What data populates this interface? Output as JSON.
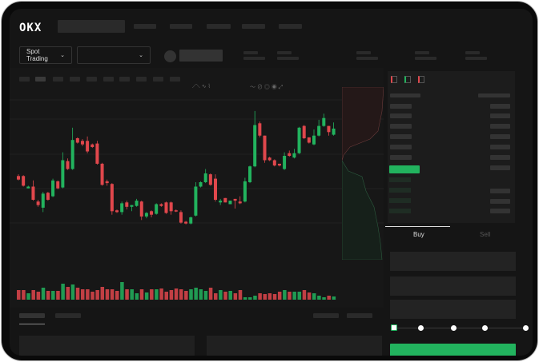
{
  "header": {
    "logo": "OKX"
  },
  "toolbar": {
    "market_selector": "Spot Trading",
    "chevron": "⌄"
  },
  "colors": {
    "up": "#22b35e",
    "down": "#e0474c",
    "background": "#151515",
    "frame": "#0a0a0a"
  },
  "trade": {
    "tabs": [
      {
        "label": "Buy",
        "active": true
      },
      {
        "label": "Sell",
        "active": false
      }
    ],
    "leverage_slider_steps": 5,
    "leverage_slider_position": 0
  },
  "orderbook": {
    "view_icons": [
      "orderbook-both-icon",
      "orderbook-bids-icon",
      "orderbook-asks-icon"
    ]
  },
  "chart_data": {
    "type": "candlestick",
    "candles": [
      [
        167,
        169,
        162,
        163
      ],
      [
        167,
        168,
        155,
        156
      ],
      [
        153,
        156,
        153,
        155
      ],
      [
        155,
        162,
        139,
        140
      ],
      [
        138,
        140,
        132,
        134
      ],
      [
        131,
        149,
        126,
        147
      ],
      [
        148,
        149,
        139,
        140
      ],
      [
        144,
        164,
        143,
        162
      ],
      [
        161,
        162,
        152,
        153
      ],
      [
        154,
        194,
        153,
        185
      ],
      [
        184,
        187,
        174,
        175
      ],
      [
        175,
        222,
        174,
        208
      ],
      [
        210,
        211,
        204,
        205
      ],
      [
        207,
        209,
        201,
        203
      ],
      [
        207,
        212,
        193,
        195
      ],
      [
        203,
        204,
        199,
        200
      ],
      [
        204,
        207,
        180,
        181
      ],
      [
        181,
        182,
        156,
        157
      ],
      [
        161,
        163,
        156,
        159
      ],
      [
        158,
        159,
        123,
        127
      ],
      [
        128,
        129,
        125,
        126
      ],
      [
        126,
        138,
        123,
        136
      ],
      [
        137,
        139,
        129,
        132
      ],
      [
        132,
        134,
        127,
        134
      ],
      [
        133,
        141,
        132,
        139
      ],
      [
        138,
        139,
        117,
        121
      ],
      [
        121,
        126,
        119,
        125
      ],
      [
        127,
        128,
        120,
        123
      ],
      [
        124,
        136,
        123,
        135
      ],
      [
        135,
        136,
        132,
        133
      ],
      [
        137,
        138,
        124,
        125
      ],
      [
        137,
        138,
        123,
        127
      ],
      [
        128,
        129,
        126,
        127
      ],
      [
        126,
        128,
        113,
        114
      ],
      [
        115,
        116,
        112,
        113
      ],
      [
        113,
        121,
        112,
        120
      ],
      [
        122,
        160,
        121,
        155
      ],
      [
        155,
        161,
        154,
        160
      ],
      [
        160,
        175,
        159,
        170
      ],
      [
        169,
        170,
        156,
        157
      ],
      [
        164,
        169,
        138,
        140
      ],
      [
        137,
        141,
        134,
        139
      ],
      [
        142,
        142,
        137,
        137
      ],
      [
        135,
        139,
        135,
        139
      ],
      [
        141,
        141,
        130,
        139
      ],
      [
        138,
        144,
        135,
        136
      ],
      [
        138,
        165,
        137,
        161
      ],
      [
        160,
        179,
        159,
        178
      ],
      [
        178,
        241,
        177,
        225
      ],
      [
        227,
        229,
        211,
        213
      ],
      [
        213,
        213,
        182,
        185
      ],
      [
        188,
        189,
        184,
        185
      ],
      [
        185,
        186,
        178,
        179
      ],
      [
        181,
        181,
        178,
        179
      ],
      [
        175,
        194,
        174,
        190
      ],
      [
        193,
        196,
        189,
        190
      ],
      [
        188,
        198,
        187,
        193
      ],
      [
        193,
        223,
        192,
        222
      ],
      [
        224,
        225,
        209,
        210
      ],
      [
        211,
        211,
        204,
        205
      ],
      [
        203,
        220,
        202,
        213
      ],
      [
        213,
        231,
        212,
        224
      ],
      [
        224,
        238,
        223,
        233
      ],
      [
        224,
        224,
        213,
        217
      ],
      [
        214,
        228,
        213,
        221
      ]
    ],
    "volumes": [
      12,
      12,
      8,
      12,
      10,
      15,
      11,
      11,
      11,
      20,
      16,
      19,
      15,
      13,
      13,
      10,
      12,
      16,
      13,
      13,
      11,
      22,
      13,
      13,
      8,
      13,
      9,
      13,
      13,
      14,
      10,
      12,
      14,
      13,
      11,
      13,
      15,
      13,
      11,
      15,
      8,
      12,
      10,
      11,
      8,
      12,
      3,
      3,
      5,
      8,
      7,
      8,
      7,
      10,
      12,
      10,
      10,
      10,
      12,
      9,
      8,
      5,
      3,
      5,
      4
    ]
  }
}
